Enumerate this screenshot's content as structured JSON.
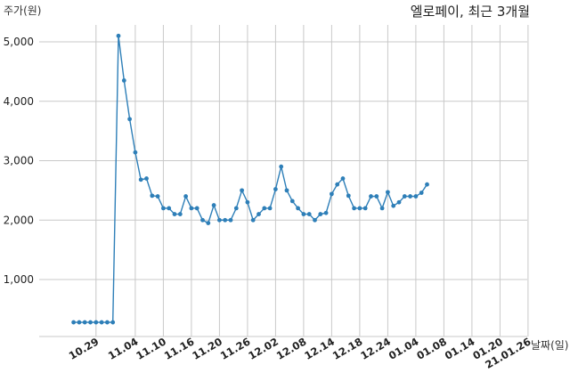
{
  "chart_data": {
    "type": "line",
    "title": "엘로페이, 최근 3개월",
    "ylabel": "주가(원)",
    "xlabel": "날짜(일)",
    "ylim": [
      0,
      5400
    ],
    "yticks": [
      1000,
      2000,
      3000,
      4000,
      5000
    ],
    "ytick_labels": [
      "1,000",
      "2,000",
      "3,000",
      "4,000",
      "5,000"
    ],
    "grid": true,
    "line_color": "#2e7fb8",
    "xtick_labels": [
      {
        "index": 6,
        "label": "10.29"
      },
      {
        "index": 13,
        "label": "11.04"
      },
      {
        "index": 18,
        "label": "11.10"
      },
      {
        "index": 23,
        "label": "11.16"
      },
      {
        "index": 28,
        "label": "11.20"
      },
      {
        "index": 33,
        "label": "11.26"
      },
      {
        "index": 38,
        "label": "12.02"
      },
      {
        "index": 43,
        "label": "12.08"
      },
      {
        "index": 48,
        "label": "12.14"
      },
      {
        "index": 53,
        "label": "12.18"
      },
      {
        "index": 58,
        "label": "12.24"
      },
      {
        "index": 63,
        "label": "01.04"
      },
      {
        "index": 68,
        "label": "01.08"
      },
      {
        "index": 73,
        "label": "01.14"
      },
      {
        "index": 78,
        "label": "01.20"
      },
      {
        "index": 83,
        "label": "21.01.26"
      }
    ],
    "series": [
      {
        "values": [
          280,
          280,
          280,
          280,
          280,
          280,
          280,
          280,
          5100,
          4350,
          3700,
          3140,
          2680,
          2700,
          2410,
          2400,
          2200,
          2200,
          2100,
          2100,
          2400,
          2200,
          2200,
          2000,
          1950,
          2250,
          2000,
          2000,
          2000,
          2200,
          2500,
          2300,
          2000,
          2100,
          2200,
          2200,
          2520,
          2900,
          2500,
          2320,
          2200,
          2100,
          2100,
          2000,
          2100,
          2120,
          2440,
          2600,
          2700,
          2410,
          2200,
          2200,
          2200,
          2400,
          2400,
          2200,
          2470,
          2240,
          2300,
          2400,
          2400,
          2400,
          2460,
          2600
        ]
      }
    ]
  }
}
